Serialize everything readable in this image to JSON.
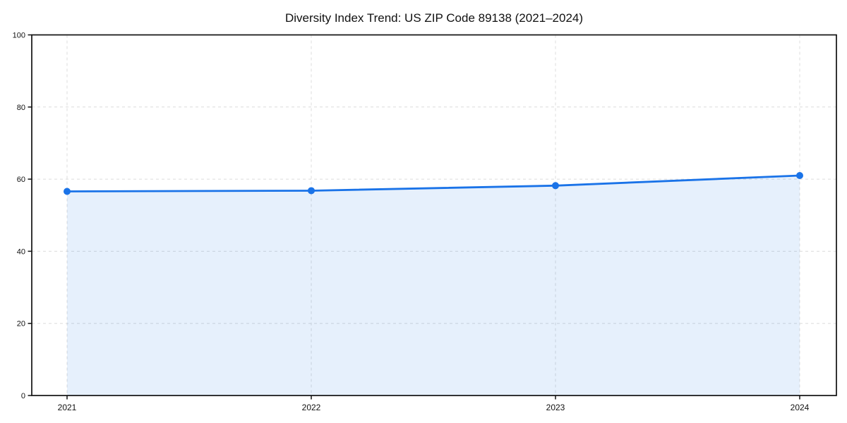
{
  "chart_data": {
    "type": "line",
    "title": "Diversity Index Trend: US ZIP Code 89138 (2021–2024)",
    "x": [
      "2021",
      "2022",
      "2023",
      "2024"
    ],
    "series": [
      {
        "name": "Diversity Index",
        "values": [
          56.6,
          56.8,
          58.2,
          61.0
        ]
      }
    ],
    "xlabel": "",
    "ylabel": "",
    "ylim": [
      0,
      100
    ],
    "yticks": [
      0,
      20,
      40,
      60,
      80,
      100
    ],
    "grid": true,
    "grid_style": "dashed",
    "legend": false,
    "area_fill": true,
    "marker": "circle",
    "colors": {
      "line": "#1a73e8",
      "marker": "#1a73e8",
      "area": "rgba(26,115,232,0.11)",
      "grid": "#dcdcdc",
      "spine": "#111111",
      "text": "#111111"
    }
  }
}
